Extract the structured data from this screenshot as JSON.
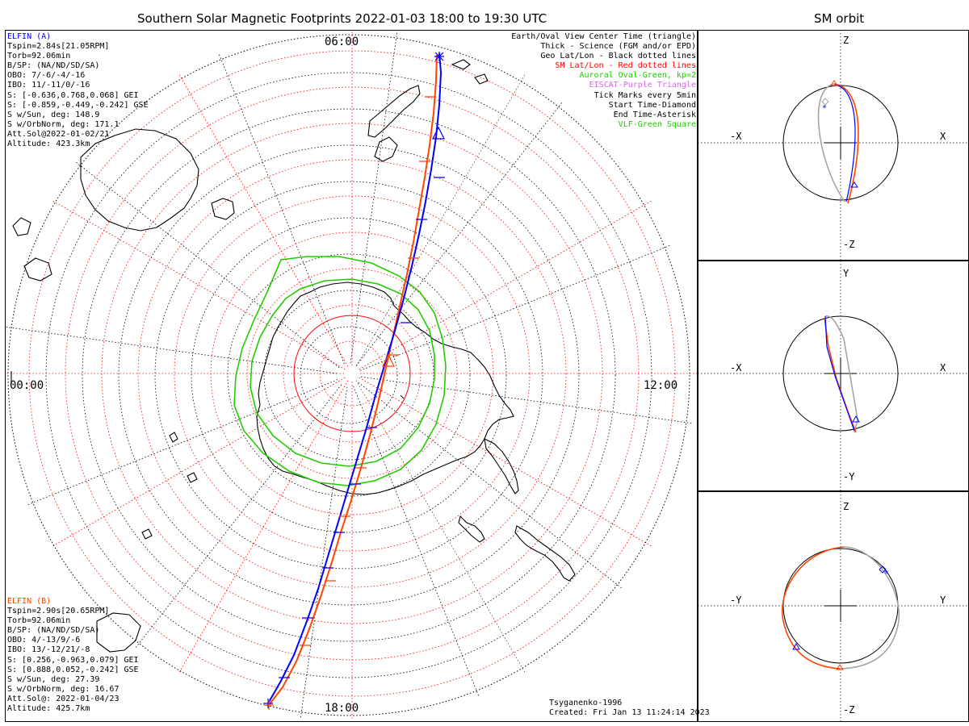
{
  "title": "Southern Solar Magnetic Footprints 2022-01-03 18:00 to 19:30 UTC",
  "right_title": "SM orbit",
  "mlt_labels": {
    "top": "06:00",
    "left": "00:00",
    "right": "12:00",
    "bottom": "18:00"
  },
  "elfin_a": {
    "header": "ELFIN (A)",
    "lines": [
      "Tspin=2.84s[21.05RPM]",
      "Torb=92.06min",
      "B/SP: (NA/ND/SD/SA)",
      "OBO: 7/-6/-4/-16",
      "IBO: 11/-11/0/-16",
      "S: [-0.636,0.768,0.068] GEI",
      "S: [-0.859,-0.449,-0.242] GSE",
      "S w/Sun, deg: 148.9",
      "S w/OrbNorm, deg: 171.1",
      "Att.Sol@2022-01-02/21",
      "Altitude: 423.3km"
    ]
  },
  "elfin_b": {
    "header": "ELFIN (B)",
    "lines": [
      "Tspin=2.90s[20.65RPM]",
      "Torb=92.06min",
      "B/SP: (NA/ND/SD/SA)",
      "OBO: 4/-13/9/-6",
      "IBO: 13/-12/21/-8",
      "S: [0.256,-0.963,0.079] GEI",
      "S: [0.888,0.052,-0.242] GSE",
      "S w/Sun, deg: 27.39",
      "S w/OrbNorm, deg: 16.67",
      "Att.Sol@: 2022-01-04/23",
      "Altitude: 425.7km"
    ]
  },
  "legend": [
    {
      "text": "Earth/Oval View Center Time (triangle)",
      "color": "#000000"
    },
    {
      "text": "Thick - Science (FGM and/or EPD)",
      "color": "#000000"
    },
    {
      "text": "Geo Lat/Lon - Black dotted lines",
      "color": "#000000"
    },
    {
      "text": "SM Lat/Lon - Red dotted lines",
      "color": "#ff0000"
    },
    {
      "text": "Auroral Oval-Green, kp=2",
      "color": "#22cc00"
    },
    {
      "text": "EISCAT-Purple Triangle",
      "color": "#dd66ee"
    },
    {
      "text": "Tick Marks every 5min",
      "color": "#000000"
    },
    {
      "text": "Start Time-Diamond",
      "color": "#000000"
    },
    {
      "text": "End Time-Asterisk",
      "color": "#000000"
    },
    {
      "text": "VLF-Green Square",
      "color": "#22cc00"
    }
  ],
  "credit": "Tsyganenko-1996",
  "created": "Created: Fri Jan 13 11:24:14 2023",
  "orbit_panels": [
    {
      "top": "Z",
      "bottom": "-Z",
      "left": "-X",
      "right": "X"
    },
    {
      "top": "Y",
      "bottom": "-Y",
      "left": "-X",
      "right": "X"
    },
    {
      "top": "Z",
      "bottom": "-Z",
      "left": "-Y",
      "right": "Y"
    }
  ],
  "colors": {
    "elfin_a": "#0000ff",
    "elfin_b": "#ff4400",
    "oval": "#22cc00",
    "sm_grid": "#ff0000",
    "orbit_other": "#a0a0a0"
  }
}
